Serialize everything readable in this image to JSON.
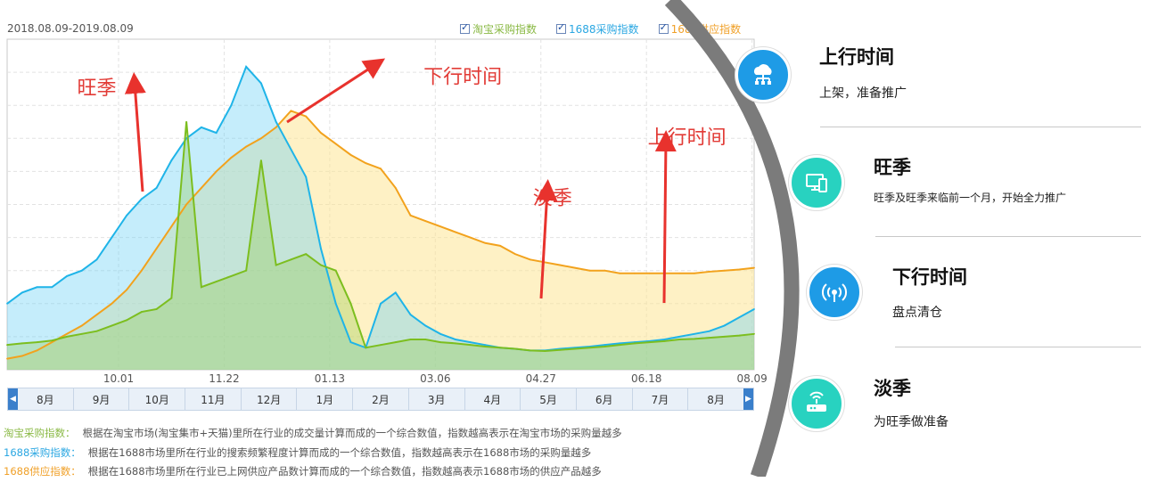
{
  "chart_data": {
    "type": "area",
    "date_range": "2018.08.09-2019.08.09",
    "legend": [
      {
        "label": "淘宝采购指数",
        "color": "#7cbe1f"
      },
      {
        "label": "1688采购指数",
        "color": "#1fb4e8"
      },
      {
        "label": "1688供应指数",
        "color": "#f2a21d"
      }
    ],
    "x_tick_labels": [
      "10.01",
      "11.22",
      "01.13",
      "03.06",
      "04.27",
      "06.18",
      "08.09"
    ],
    "month_nav": [
      "8月",
      "9月",
      "10月",
      "11月",
      "12月",
      "1月",
      "2月",
      "3月",
      "4月",
      "5月",
      "6月",
      "7月",
      "8月"
    ],
    "x": [
      0,
      2,
      4,
      6,
      8,
      10,
      12,
      14,
      16,
      18,
      20,
      22,
      24,
      26,
      28,
      30,
      32,
      34,
      36,
      38,
      40,
      42,
      44,
      46,
      48,
      50,
      52,
      54,
      56,
      58,
      60,
      62,
      64,
      66,
      68,
      70,
      72,
      74,
      76,
      78,
      80,
      82,
      84,
      86,
      88,
      90,
      92,
      94,
      96,
      98,
      100
    ],
    "series": [
      {
        "name": "淘宝采购指数",
        "color": "#7cbe1f",
        "values": [
          4.5,
          4.8,
          5,
          5.3,
          6,
          6.5,
          7,
          8,
          9,
          10.5,
          11,
          13,
          45,
          15,
          16,
          17,
          18,
          38,
          19,
          20,
          21,
          19,
          18,
          12,
          4,
          4.5,
          5,
          5.5,
          5.5,
          5,
          4.8,
          4.5,
          4.2,
          4,
          3.8,
          3.5,
          3.4,
          3.6,
          3.8,
          4,
          4.2,
          4.5,
          4.8,
          5,
          5.2,
          5.5,
          5.6,
          5.8,
          6,
          6.2,
          6.5
        ]
      },
      {
        "name": "1688采购指数",
        "color": "#1fb4e8",
        "values": [
          12,
          14,
          15,
          15,
          17,
          18,
          20,
          24,
          28,
          31,
          33,
          38,
          42,
          44,
          43,
          48,
          55,
          52,
          45,
          40,
          35,
          22,
          12,
          5,
          4,
          12,
          14,
          10,
          8,
          6.5,
          5.5,
          5,
          4.5,
          4,
          3.8,
          3.5,
          3.5,
          3.8,
          4,
          4.2,
          4.5,
          4.8,
          5,
          5.2,
          5.5,
          6,
          6.5,
          7,
          8,
          9.5,
          11
        ]
      },
      {
        "name": "1688供应指数",
        "color": "#f2a21d",
        "values": [
          2,
          2.5,
          3.5,
          5,
          6.5,
          8,
          10,
          12,
          14.5,
          18,
          22,
          26,
          30,
          33,
          36,
          38.5,
          40.5,
          42,
          44,
          47,
          46,
          43,
          41,
          39,
          37.5,
          36.5,
          33,
          28,
          27,
          26,
          25,
          24,
          23,
          22.5,
          21,
          20,
          19.5,
          19,
          18.5,
          18,
          18,
          17.5,
          17.5,
          17.5,
          17.5,
          17.5,
          17.5,
          17.8,
          18,
          18.2,
          18.5
        ]
      }
    ],
    "ylim": [
      0,
      60
    ],
    "grid": true,
    "annotations": [
      {
        "text": "旺季",
        "x": 12,
        "y": 50
      },
      {
        "text": "下行时间",
        "x": 61,
        "y": 52
      },
      {
        "text": "淡季",
        "x": 73,
        "y": 30
      },
      {
        "text": "上行时间",
        "x": 91,
        "y": 41
      }
    ]
  },
  "footnotes": [
    {
      "label": "淘宝采购指数：",
      "color": "#8ab945",
      "desc": "根据在淘宝市场(淘宝集市+天猫)里所在行业的成交量计算而成的一个综合数值，指数越高表示在淘宝市场的采购量越多"
    },
    {
      "label": "1688采购指数：",
      "color": "#2ba7e2",
      "desc": "根据在1688市场里所在行业的搜索频繁程度计算而成的一个综合数值，指数越高表示在1688市场的采购量越多"
    },
    {
      "label": "1688供应指数：",
      "color": "#f0a028",
      "desc": "根据在1688市场里所在行业已上网供应产品数计算而成的一个综合数值，指数越高表示1688市场的供应产品越多"
    }
  ],
  "steps": [
    {
      "title": "上行时间",
      "desc": "上架，准备推广",
      "color": "#1e9be6",
      "icon": "cloud-network-icon"
    },
    {
      "title": "旺季",
      "desc": "旺季及旺季来临前一个月，开始全力推广",
      "color": "#28d2c0",
      "icon": "devices-icon"
    },
    {
      "title": "下行时间",
      "desc": "盘点清仓",
      "color": "#1e9be6",
      "icon": "wireless-signal-icon"
    },
    {
      "title": "淡季",
      "desc": "为旺季做准备",
      "color": "#28d2c0",
      "icon": "router-icon"
    }
  ]
}
